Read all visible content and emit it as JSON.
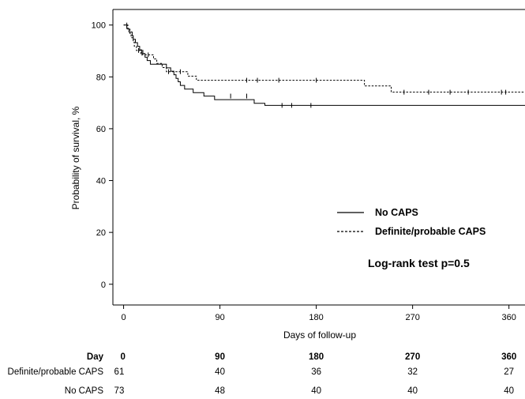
{
  "chart_data": {
    "type": "line",
    "subtype": "kaplan-meier",
    "title": "",
    "xlabel": "Days of follow-up",
    "ylabel": "Probability of survival, %",
    "xlim": [
      -10,
      375
    ],
    "ylim": [
      -8,
      106
    ],
    "xticks": [
      0,
      90,
      180,
      270,
      360
    ],
    "yticks": [
      0,
      20,
      40,
      60,
      80,
      100
    ],
    "xtick_labels": [
      "0",
      "90",
      "180",
      "270",
      "360"
    ],
    "ytick_labels": [
      "0",
      "20",
      "40",
      "60",
      "80",
      "100"
    ],
    "legend_position": "center-right",
    "series": [
      {
        "name": "No CAPS",
        "line_style": "solid",
        "steps": [
          [
            0,
            100
          ],
          [
            3,
            98.6
          ],
          [
            5,
            97.3
          ],
          [
            8,
            95.9
          ],
          [
            9,
            94.5
          ],
          [
            11,
            93.2
          ],
          [
            13,
            91.8
          ],
          [
            15,
            90.4
          ],
          [
            17,
            89.0
          ],
          [
            20,
            87.6
          ],
          [
            22,
            86.3
          ],
          [
            25,
            84.9
          ],
          [
            40,
            83.5
          ],
          [
            44,
            82.2
          ],
          [
            47,
            80.8
          ],
          [
            49,
            79.4
          ],
          [
            51,
            78.1
          ],
          [
            53,
            76.7
          ],
          [
            57,
            75.3
          ],
          [
            65,
            73.9
          ],
          [
            75,
            72.6
          ],
          [
            85,
            71.2
          ],
          [
            122,
            69.8
          ],
          [
            132,
            69.0
          ],
          [
            375,
            69.0
          ]
        ],
        "censored": [
          [
            100,
            72.6
          ],
          [
            115,
            72.6
          ],
          [
            148,
            69.0
          ],
          [
            157,
            69.0
          ],
          [
            175,
            69.0
          ]
        ]
      },
      {
        "name": "Definite/probable CAPS",
        "line_style": "dashed",
        "steps": [
          [
            0,
            100
          ],
          [
            4,
            98.4
          ],
          [
            6,
            96.7
          ],
          [
            7,
            95.1
          ],
          [
            9,
            93.4
          ],
          [
            10,
            91.8
          ],
          [
            12,
            90.2
          ],
          [
            16,
            88.5
          ],
          [
            28,
            86.9
          ],
          [
            31,
            85.2
          ],
          [
            36,
            83.6
          ],
          [
            40,
            82.0
          ],
          [
            60,
            80.3
          ],
          [
            68,
            78.7
          ],
          [
            225,
            76.5
          ],
          [
            250,
            74.1
          ],
          [
            375,
            74.1
          ]
        ],
        "censored": [
          [
            3,
            100
          ],
          [
            14,
            90.2
          ],
          [
            18,
            89.5
          ],
          [
            23,
            88.5
          ],
          [
            42,
            82.0
          ],
          [
            53,
            82.0
          ],
          [
            115,
            78.7
          ],
          [
            125,
            78.7
          ],
          [
            145,
            78.7
          ],
          [
            180,
            78.7
          ],
          [
            262,
            74.1
          ],
          [
            285,
            74.1
          ],
          [
            305,
            74.1
          ],
          [
            322,
            74.1
          ],
          [
            353,
            74.1
          ],
          [
            357,
            74.1
          ]
        ]
      }
    ],
    "annotations": [
      "Log-rank test p=0.5"
    ],
    "risk_table": {
      "header_label": "Day",
      "days": [
        "0",
        "90",
        "180",
        "270",
        "360"
      ],
      "rows": [
        {
          "label": "Definite/probable CAPS",
          "values": [
            "61",
            "40",
            "36",
            "32",
            "27"
          ]
        },
        {
          "label": "No CAPS",
          "values": [
            "73",
            "48",
            "40",
            "40",
            "40"
          ]
        }
      ]
    }
  }
}
